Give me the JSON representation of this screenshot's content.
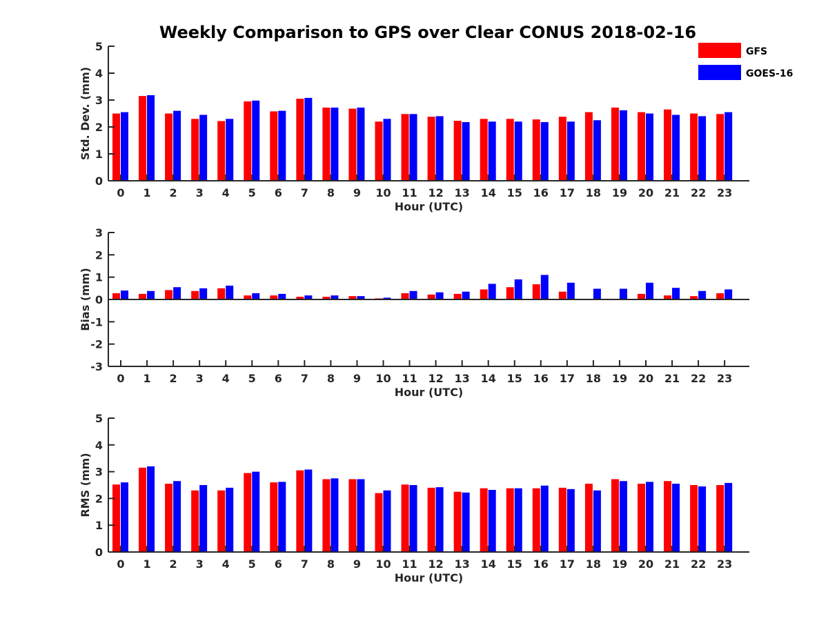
{
  "title": "Weekly Comparison to GPS over Clear CONUS 2018-02-16",
  "legend": [
    {
      "name": "GFS",
      "color": "#ff0000"
    },
    {
      "name": "GOES-16",
      "color": "#0000ff"
    }
  ],
  "chart_data": [
    {
      "type": "bar",
      "xlabel": "Hour (UTC)",
      "ylabel": "Std. Dev. (mm)",
      "ylim": [
        0,
        5
      ],
      "yticks": [
        "0",
        "1",
        "2",
        "3",
        "4",
        "5"
      ],
      "categories": [
        "0",
        "1",
        "2",
        "3",
        "4",
        "5",
        "6",
        "7",
        "8",
        "9",
        "10",
        "11",
        "12",
        "13",
        "14",
        "15",
        "16",
        "17",
        "18",
        "19",
        "20",
        "21",
        "22",
        "23"
      ],
      "legend_position": "top-right",
      "series": [
        {
          "name": "GFS",
          "color": "#ff0000",
          "values": [
            2.5,
            3.15,
            2.5,
            2.3,
            2.22,
            2.95,
            2.58,
            3.05,
            2.72,
            2.68,
            2.2,
            2.48,
            2.38,
            2.23,
            2.3,
            2.3,
            2.28,
            2.38,
            2.55,
            2.72,
            2.55,
            2.65,
            2.5,
            2.48
          ]
        },
        {
          "name": "GOES-16",
          "color": "#0000ff",
          "values": [
            2.55,
            3.18,
            2.6,
            2.45,
            2.3,
            2.98,
            2.6,
            3.08,
            2.72,
            2.72,
            2.3,
            2.48,
            2.4,
            2.18,
            2.2,
            2.2,
            2.18,
            2.2,
            2.25,
            2.62,
            2.5,
            2.45,
            2.4,
            2.55
          ]
        }
      ]
    },
    {
      "type": "bar",
      "xlabel": "Hour (UTC)",
      "ylabel": "Bias (mm)",
      "ylim": [
        -3,
        3
      ],
      "yticks": [
        "-3",
        "-2",
        "-1",
        "0",
        "1",
        "2",
        "3"
      ],
      "categories": [
        "0",
        "1",
        "2",
        "3",
        "4",
        "5",
        "6",
        "7",
        "8",
        "9",
        "10",
        "11",
        "12",
        "13",
        "14",
        "15",
        "16",
        "17",
        "18",
        "19",
        "20",
        "21",
        "22",
        "23"
      ],
      "series": [
        {
          "name": "GFS",
          "color": "#ff0000",
          "values": [
            0.28,
            0.25,
            0.42,
            0.38,
            0.5,
            0.18,
            0.18,
            0.12,
            0.12,
            0.15,
            0.05,
            0.28,
            0.22,
            0.25,
            0.45,
            0.55,
            0.68,
            0.35,
            0.03,
            0.0,
            0.25,
            0.18,
            0.15,
            0.28
          ]
        },
        {
          "name": "GOES-16",
          "color": "#0000ff",
          "values": [
            0.4,
            0.38,
            0.55,
            0.5,
            0.62,
            0.28,
            0.25,
            0.18,
            0.18,
            0.15,
            0.08,
            0.38,
            0.32,
            0.35,
            0.7,
            0.9,
            1.1,
            0.75,
            0.48,
            0.48,
            0.75,
            0.52,
            0.38,
            0.45
          ]
        }
      ]
    },
    {
      "type": "bar",
      "xlabel": "Hour (UTC)",
      "ylabel": "RMS (mm)",
      "ylim": [
        0,
        5
      ],
      "yticks": [
        "0",
        "1",
        "2",
        "3",
        "4",
        "5"
      ],
      "categories": [
        "0",
        "1",
        "2",
        "3",
        "4",
        "5",
        "6",
        "7",
        "8",
        "9",
        "10",
        "11",
        "12",
        "13",
        "14",
        "15",
        "16",
        "17",
        "18",
        "19",
        "20",
        "21",
        "22",
        "23"
      ],
      "series": [
        {
          "name": "GFS",
          "color": "#ff0000",
          "values": [
            2.52,
            3.15,
            2.55,
            2.3,
            2.3,
            2.95,
            2.6,
            3.05,
            2.72,
            2.72,
            2.2,
            2.52,
            2.4,
            2.25,
            2.38,
            2.38,
            2.38,
            2.4,
            2.55,
            2.72,
            2.55,
            2.65,
            2.5,
            2.5
          ]
        },
        {
          "name": "GOES-16",
          "color": "#0000ff",
          "values": [
            2.6,
            3.2,
            2.65,
            2.5,
            2.4,
            3.0,
            2.62,
            3.08,
            2.75,
            2.72,
            2.3,
            2.5,
            2.42,
            2.22,
            2.32,
            2.38,
            2.48,
            2.35,
            2.3,
            2.65,
            2.62,
            2.55,
            2.45,
            2.58
          ]
        }
      ]
    }
  ]
}
